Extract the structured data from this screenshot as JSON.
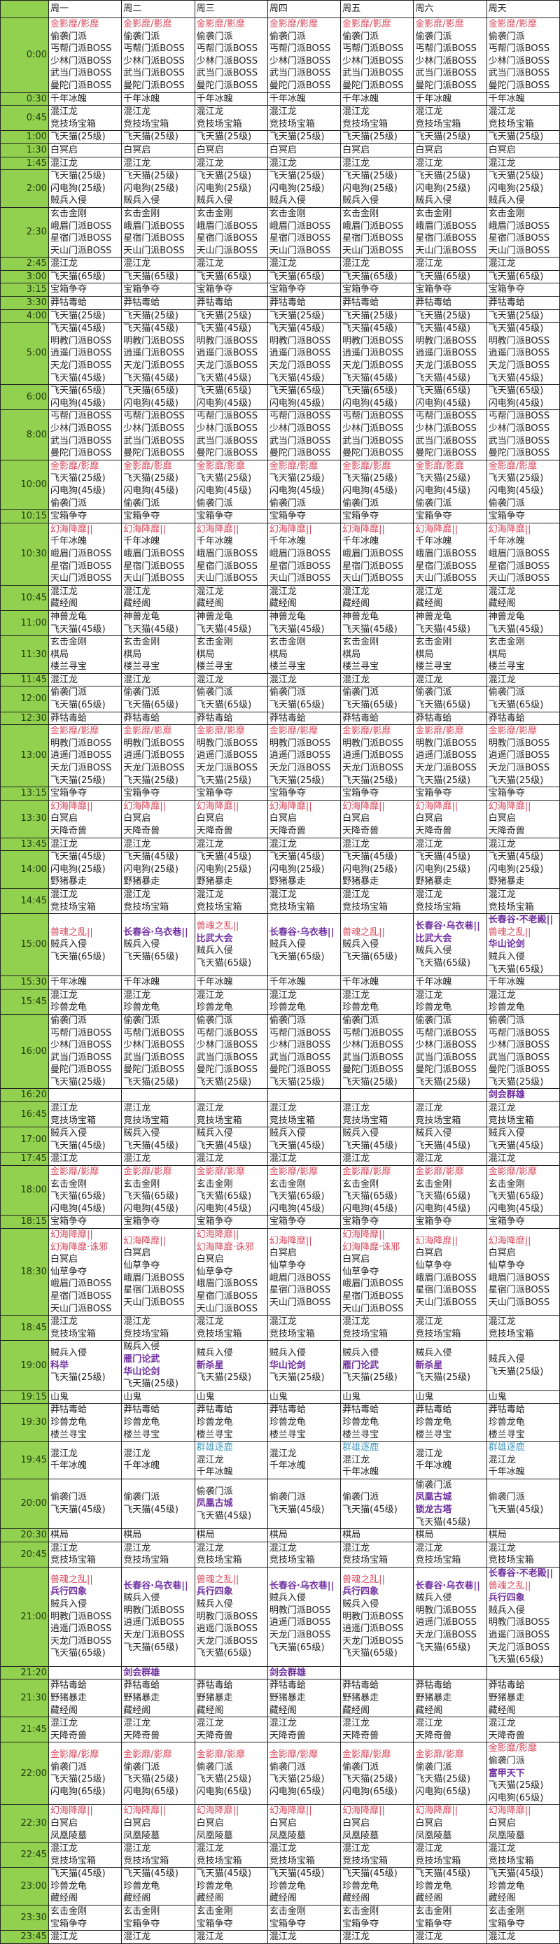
{
  "header": {
    "corner": "",
    "days": [
      "周一",
      "周二",
      "周三",
      "周四",
      "周五",
      "周六",
      "周天"
    ]
  },
  "colors": {
    "time_column": "#92d050",
    "red": "#d9475a",
    "purple": "#7030a0",
    "teal": "#4a9cc0"
  },
  "item_colors": {
    "金影靡/影靡": "red",
    "幻海降靡||": "red",
    "幻海降靡·诛邪": "red",
    "兽魂之乱||": "red",
    "长春谷·乌衣巷||": "purple",
    "长春谷·不老殿||": "purple",
    "比武大会": "purple",
    "华山论剑": "purple",
    "剑会群雄": "purple",
    "雁门论武": "purple",
    "新杀星": "purple",
    "凤凰古城": "purple",
    "锁龙古塔": "purple",
    "兵行四象": "purple",
    "富甲天下": "purple",
    "科举": "purple",
    "群雄逐鹿": "teal"
  },
  "rows": [
    {
      "time": "0:00",
      "all": [
        "金影靡/影靡",
        "偷袭门派",
        "丐帮门派BOSS",
        "少林门派BOSS",
        "武当门派BOSS",
        "曼陀门派BOSS"
      ]
    },
    {
      "time": "0:30",
      "all": [
        "千年冰魄"
      ]
    },
    {
      "time": "0:45",
      "all": [
        "混江龙",
        "竞技场宝箱"
      ]
    },
    {
      "time": "1:00",
      "all": [
        "飞天猫(25级)"
      ]
    },
    {
      "time": "1:30",
      "all": [
        "白冥启"
      ]
    },
    {
      "time": "1:45",
      "all": [
        "混江龙"
      ]
    },
    {
      "time": "2:00",
      "all": [
        "飞天猫(25级)",
        "闪电狗(25级)",
        "贼兵入侵"
      ]
    },
    {
      "time": "2:30",
      "all": [
        "玄击金刚",
        "峨眉门派BOSS",
        "星宿门派BOSS",
        "天山门派BOSS"
      ]
    },
    {
      "time": "2:45",
      "all": [
        "混江龙"
      ]
    },
    {
      "time": "3:00",
      "all": [
        "飞天猫(65级)"
      ]
    },
    {
      "time": "3:15",
      "all": [
        "宝箱争夺"
      ]
    },
    {
      "time": "3:30",
      "all": [
        "莽牯毒蛤"
      ]
    },
    {
      "time": "4:00",
      "all": [
        "飞天猫(25级)"
      ]
    },
    {
      "time": "5:00",
      "all": [
        "飞天猫(45级)",
        "明教门派BOSS",
        "逍遥门派BOSS",
        "天龙门派BOSS",
        "飞天猫(45级)"
      ]
    },
    {
      "time": "6:00",
      "all": [
        "飞天猫(65级)",
        "闪电狗(45级)"
      ]
    },
    {
      "time": "8:00",
      "all": [
        "丐帮门派BOSS",
        "少林门派BOSS",
        "武当门派BOSS",
        "曼陀门派BOSS"
      ]
    },
    {
      "time": "10:00",
      "all": [
        "金影靡/影靡",
        "飞天猫(25级)",
        "闪电狗(45级)",
        "偷袭门派"
      ]
    },
    {
      "time": "10:15",
      "all": [
        "宝箱争夺"
      ]
    },
    {
      "time": "10:30",
      "all": [
        "幻海降靡||",
        "千年冰魄",
        "峨眉门派BOSS",
        "星宿门派BOSS",
        "天山门派BOSS"
      ]
    },
    {
      "time": "10:45",
      "all": [
        "混江龙",
        "藏经阁"
      ]
    },
    {
      "time": "11:00",
      "all": [
        "神兽龙龟",
        "飞天猫(45级)"
      ]
    },
    {
      "time": "11:30",
      "all": [
        "玄击金刚",
        "棋局",
        "楼兰寻宝"
      ]
    },
    {
      "time": "11:45",
      "all": [
        "混江龙"
      ]
    },
    {
      "time": "12:00",
      "all": [
        "偷袭门派",
        "飞天猫(65级)"
      ]
    },
    {
      "time": "12:30",
      "all": [
        "莽牯毒蛤"
      ]
    },
    {
      "time": "13:00",
      "all": [
        "金影靡/影靡",
        "明教门派BOSS",
        "逍遥门派BOSS",
        "天龙门派BOSS",
        "飞天猫(25级)"
      ]
    },
    {
      "time": "13:15",
      "all": [
        "宝箱争夺"
      ]
    },
    {
      "time": "13:30",
      "all": [
        "幻海降靡||",
        "白冥启",
        "天降奇兽"
      ]
    },
    {
      "time": "13:45",
      "all": [
        "混江龙"
      ]
    },
    {
      "time": "14:00",
      "all": [
        "飞天猫(45级)",
        "闪电狗(25级)",
        "野猪暴走"
      ]
    },
    {
      "time": "14:45",
      "all": [
        "混江龙",
        "竞技场宝箱"
      ]
    },
    {
      "time": "15:00",
      "days": [
        [
          "兽魂之乱||",
          "贼兵入侵",
          "飞天猫(65级)"
        ],
        [
          "长春谷·乌衣巷||",
          "贼兵入侵",
          "飞天猫(65级)"
        ],
        [
          "兽魂之乱||",
          "比武大会",
          "贼兵入侵",
          "飞天猫(65级)"
        ],
        [
          "长春谷·乌衣巷||",
          "贼兵入侵",
          "飞天猫(65级)"
        ],
        [
          "兽魂之乱||",
          "贼兵入侵",
          "飞天猫(65级)"
        ],
        [
          "长春谷·乌衣巷||",
          "比武大会",
          "贼兵入侵",
          "飞天猫(65级)"
        ],
        [
          "长春谷·不老殿||",
          "兽魂之乱||",
          "华山论剑",
          "贼兵入侵",
          "飞天猫(65级)"
        ]
      ]
    },
    {
      "time": "15:30",
      "all": [
        "千年冰魄"
      ]
    },
    {
      "time": "15:45",
      "all": [
        "混江龙",
        "珍兽龙龟"
      ]
    },
    {
      "time": "16:00",
      "all": [
        "偷袭门派",
        "丐帮门派BOSS",
        "少林门派BOSS",
        "武当门派BOSS",
        "曼陀门派BOSS",
        "飞天猫(25级)"
      ]
    },
    {
      "time": "16:20",
      "days": [
        [],
        [],
        [],
        [],
        [],
        [],
        [
          "剑会群雄"
        ]
      ]
    },
    {
      "time": "16:45",
      "all": [
        "混江龙",
        "竞技场宝箱"
      ]
    },
    {
      "time": "17:00",
      "all": [
        "贼兵入侵",
        "飞天猫(45级)"
      ]
    },
    {
      "time": "17:45",
      "all": [
        "混江龙"
      ]
    },
    {
      "time": "18:00",
      "all": [
        "金影靡/影靡",
        "玄击金刚",
        "飞天猫(65级)",
        "闪电狗(45级)"
      ]
    },
    {
      "time": "18:15",
      "all": [
        "宝箱争夺"
      ]
    },
    {
      "time": "18:30",
      "days": [
        [
          "幻海降靡||",
          "幻海降靡·诛邪",
          "白冥启",
          "仙草争夺",
          "峨眉门派BOSS",
          "星宿门派BOSS",
          "天山门派BOSS"
        ],
        [
          "幻海降靡||",
          "白冥启",
          "仙草争夺",
          "峨眉门派BOSS",
          "星宿门派BOSS",
          "天山门派BOSS"
        ],
        [
          "幻海降靡||",
          "幻海降靡·诛邪",
          "白冥启",
          "仙草争夺",
          "峨眉门派BOSS",
          "星宿门派BOSS",
          "天山门派BOSS"
        ],
        [
          "幻海降靡||",
          "白冥启",
          "仙草争夺",
          "峨眉门派BOSS",
          "星宿门派BOSS",
          "天山门派BOSS"
        ],
        [
          "幻海降靡||",
          "幻海降靡·诛邪",
          "白冥启",
          "仙草争夺",
          "峨眉门派BOSS",
          "星宿门派BOSS",
          "天山门派BOSS"
        ],
        [
          "幻海降靡||",
          "白冥启",
          "仙草争夺",
          "峨眉门派BOSS",
          "星宿门派BOSS",
          "天山门派BOSS"
        ],
        [
          "幻海降靡||",
          "白冥启",
          "仙草争夺",
          "峨眉门派BOSS",
          "星宿门派BOSS",
          "天山门派BOSS"
        ]
      ]
    },
    {
      "time": "18:45",
      "all": [
        "混江龙",
        "竞技场宝箱"
      ]
    },
    {
      "time": "19:00",
      "days": [
        [
          "贼兵入侵",
          "科举",
          "飞天猫(25级)"
        ],
        [
          "贼兵入侵",
          "雁门论武",
          "华山论剑",
          "飞天猫(25级)"
        ],
        [
          "贼兵入侵",
          "新杀星",
          "飞天猫(25级)"
        ],
        [
          "贼兵入侵",
          "华山论剑",
          "飞天猫(25级)"
        ],
        [
          "贼兵入侵",
          "雁门论武",
          "飞天猫(25级)"
        ],
        [
          "贼兵入侵",
          "新杀星",
          "飞天猫(25级)"
        ],
        [
          "贼兵入侵",
          "飞天猫(25级)"
        ]
      ]
    },
    {
      "time": "19:15",
      "all": [
        "山鬼"
      ]
    },
    {
      "time": "19:30",
      "all": [
        "莽牯毒蛤",
        "珍兽龙龟",
        "楼兰寻宝"
      ]
    },
    {
      "time": "19:45",
      "days": [
        [
          "混江龙",
          "千年冰魄"
        ],
        [
          "混江龙",
          "千年冰魄"
        ],
        [
          "群雄逐鹿",
          "混江龙",
          "千年冰魄"
        ],
        [
          "混江龙",
          "千年冰魄"
        ],
        [
          "群雄逐鹿",
          "混江龙",
          "千年冰魄"
        ],
        [
          "混江龙",
          "千年冰魄"
        ],
        [
          "群雄逐鹿",
          "混江龙",
          "千年冰魄"
        ]
      ]
    },
    {
      "time": "20:00",
      "days": [
        [
          "偷袭门派",
          "飞天猫(45级)"
        ],
        [
          "偷袭门派",
          "飞天猫(45级)"
        ],
        [
          "偷袭门派",
          "凤凰古城",
          "飞天猫(45级)"
        ],
        [
          "偷袭门派",
          "飞天猫(45级)"
        ],
        [
          "偷袭门派",
          "飞天猫(45级)"
        ],
        [
          "偷袭门派",
          "凤凰古城",
          "锁龙古塔",
          "飞天猫(45级)"
        ],
        [
          "偷袭门派",
          "飞天猫(45级)"
        ]
      ]
    },
    {
      "time": "20:30",
      "all": [
        "棋局"
      ]
    },
    {
      "time": "20:45",
      "all": [
        "混江龙",
        "竞技场宝箱"
      ]
    },
    {
      "time": "21:00",
      "days": [
        [
          "兽魂之乱||",
          "兵行四象",
          "贼兵入侵",
          "明教门派BOSS",
          "逍遥门派BOSS",
          "天龙门派BOSS",
          "飞天猫(65级)"
        ],
        [
          "长春谷·乌衣巷||",
          "贼兵入侵",
          "明教门派BOSS",
          "逍遥门派BOSS",
          "天龙门派BOSS",
          "飞天猫(65级)"
        ],
        [
          "兽魂之乱||",
          "兵行四象",
          "贼兵入侵",
          "明教门派BOSS",
          "逍遥门派BOSS",
          "天龙门派BOSS",
          "飞天猫(65级)"
        ],
        [
          "长春谷·乌衣巷||",
          "贼兵入侵",
          "明教门派BOSS",
          "逍遥门派BOSS",
          "天龙门派BOSS",
          "飞天猫(65级)"
        ],
        [
          "兽魂之乱||",
          "兵行四象",
          "贼兵入侵",
          "明教门派BOSS",
          "逍遥门派BOSS",
          "天龙门派BOSS",
          "飞天猫(65级)"
        ],
        [
          "长春谷·乌衣巷||",
          "贼兵入侵",
          "明教门派BOSS",
          "逍遥门派BOSS",
          "天龙门派BOSS",
          "飞天猫(65级)"
        ],
        [
          "长春谷·不老殿||",
          "兽魂之乱||",
          "兵行四象",
          "贼兵入侵",
          "明教门派BOSS",
          "逍遥门派BOSS",
          "天龙门派BOSS",
          "飞天猫(65级)"
        ]
      ]
    },
    {
      "time": "21:20",
      "days": [
        [],
        [
          "剑会群雄"
        ],
        [],
        [
          "剑会群雄"
        ],
        [],
        [],
        []
      ]
    },
    {
      "time": "21:30",
      "all": [
        "莽牯毒蛤",
        "野猪暴走",
        "藏经阁"
      ]
    },
    {
      "time": "21:45",
      "all": [
        "混江龙",
        "天降奇兽"
      ]
    },
    {
      "time": "22:00",
      "days": [
        [
          "金影靡/影靡",
          "偷袭门派",
          "飞天猫(25级)",
          "闪电狗(65级)"
        ],
        [
          "金影靡/影靡",
          "偷袭门派",
          "飞天猫(25级)",
          "闪电狗(65级)"
        ],
        [
          "金影靡/影靡",
          "偷袭门派",
          "飞天猫(25级)",
          "闪电狗(65级)"
        ],
        [
          "金影靡/影靡",
          "偷袭门派",
          "飞天猫(25级)",
          "闪电狗(65级)"
        ],
        [
          "金影靡/影靡",
          "偷袭门派",
          "飞天猫(25级)",
          "闪电狗(65级)"
        ],
        [
          "金影靡/影靡",
          "偷袭门派",
          "飞天猫(25级)",
          "闪电狗(65级)"
        ],
        [
          "金影靡/影靡",
          "偷袭门派",
          "富甲天下",
          "飞天猫(25级)",
          "闪电狗(65级)"
        ]
      ]
    },
    {
      "time": "22:30",
      "all": [
        "幻海降靡||",
        "白冥启",
        "凤凰陵墓"
      ]
    },
    {
      "time": "22:45",
      "all": [
        "混江龙",
        "竞技场宝箱"
      ]
    },
    {
      "time": "23:00",
      "all": [
        "飞天猫(45级)",
        "珍兽龙龟",
        "藏经阁"
      ]
    },
    {
      "time": "23:30",
      "all": [
        "玄击金刚",
        "宝箱争夺"
      ]
    },
    {
      "time": "23:45",
      "all": [
        "混江龙"
      ]
    }
  ]
}
